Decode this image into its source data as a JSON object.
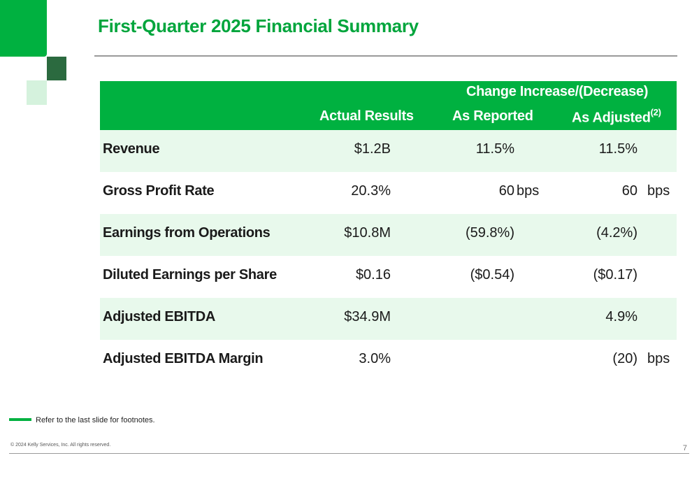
{
  "title": "First-Quarter 2025 Financial Summary",
  "colors": {
    "accent": "#00b140",
    "accent_dark": "#2b6a3f",
    "row_shade": "#e8f9ec",
    "title_text": "#00a53c"
  },
  "table": {
    "group_header": "Change Increase/(Decrease)",
    "col_actual": "Actual Results",
    "col_reported": "As Reported",
    "col_adjusted": "As Adjusted",
    "col_adjusted_note": "(2)",
    "rows": [
      {
        "label": "Revenue",
        "actual": "$1.2B",
        "reported": "11.5%",
        "reported_unit": "",
        "adjusted": "11.5%",
        "adjusted_unit": ""
      },
      {
        "label": "Gross Profit Rate",
        "actual": "20.3%",
        "reported": "60",
        "reported_unit": "bps",
        "adjusted": "60",
        "adjusted_unit": "bps"
      },
      {
        "label": "Earnings from Operations",
        "actual": "$10.8M",
        "reported": "(59.8%)",
        "reported_unit": "",
        "adjusted": "(4.2%)",
        "adjusted_unit": ""
      },
      {
        "label": "Diluted Earnings per Share",
        "actual": "$0.16",
        "reported": "($0.54)",
        "reported_unit": "",
        "adjusted": "($0.17)",
        "adjusted_unit": ""
      },
      {
        "label": "Adjusted EBITDA",
        "actual": "$34.9M",
        "reported": "",
        "reported_unit": "",
        "adjusted": "4.9%",
        "adjusted_unit": ""
      },
      {
        "label": "Adjusted EBITDA Margin",
        "actual": "3.0%",
        "reported": "",
        "reported_unit": "",
        "adjusted": "(20)",
        "adjusted_unit": "bps"
      }
    ]
  },
  "footnote": "Refer to the last slide for footnotes.",
  "copyright": "© 2024 Kelly Services, Inc. All rights reserved.",
  "page_number": "7"
}
